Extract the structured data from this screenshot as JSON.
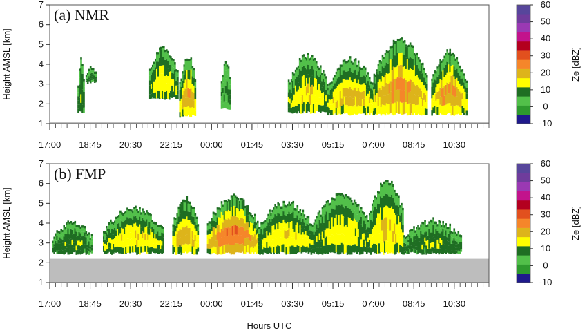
{
  "chart_data": {
    "type": "heatmap",
    "xlabel": "Hours UTC",
    "x_ticks": [
      "17:00",
      "18:45",
      "20:30",
      "22:15",
      "00:00",
      "01:45",
      "03:30",
      "05:15",
      "07:00",
      "08:45",
      "10:30"
    ],
    "x_range_hours_since_1700": [
      0,
      19
    ],
    "x_minor_tick_step_hours": 0.25,
    "colorbar": {
      "label": "Ze [dBZ]",
      "ticks": [
        60,
        50,
        40,
        30,
        20,
        10,
        0,
        -10
      ],
      "range": [
        -10,
        60
      ],
      "colors": [
        "#1f1a8c",
        "#2e9a2e",
        "#52c04a",
        "#1f6e23",
        "#ffff00",
        "#ddb41b",
        "#f5862a",
        "#e2501e",
        "#b3001f",
        "#c2138c",
        "#9a39b3",
        "#6f3c9c",
        "#57469b"
      ]
    },
    "panels": [
      {
        "label": "(a) NMR",
        "ylabel": "Height AMSL [km]",
        "y_ticks": [
          1,
          2,
          3,
          4,
          5,
          6,
          7
        ],
        "ylim": [
          1,
          7
        ],
        "ground_fill_top_km": 1.1,
        "echo_columns": [
          {
            "hours": [
              1.2,
              1.45
            ],
            "base_km": 1.5,
            "top_km": 4.3,
            "max_dbz": 12
          },
          {
            "hours": [
              1.55,
              2.0
            ],
            "base_km": 3.0,
            "top_km": 3.9,
            "max_dbz": 10
          },
          {
            "hours": [
              4.3,
              5.5
            ],
            "base_km": 2.2,
            "top_km": 4.9,
            "max_dbz": 17
          },
          {
            "hours": [
              5.6,
              6.3
            ],
            "base_km": 1.3,
            "top_km": 4.5,
            "max_dbz": 24
          },
          {
            "hours": [
              7.4,
              7.8
            ],
            "base_km": 1.7,
            "top_km": 4.2,
            "max_dbz": 8
          },
          {
            "hours": [
              10.3,
              12.0
            ],
            "base_km": 1.5,
            "top_km": 4.5,
            "max_dbz": 18
          },
          {
            "hours": [
              12.0,
              14.0
            ],
            "base_km": 1.4,
            "top_km": 4.3,
            "max_dbz": 22
          },
          {
            "hours": [
              14.0,
              16.3
            ],
            "base_km": 1.4,
            "top_km": 5.3,
            "max_dbz": 26
          },
          {
            "hours": [
              16.5,
              18.0
            ],
            "base_km": 1.4,
            "top_km": 4.7,
            "max_dbz": 25
          }
        ]
      },
      {
        "label": "(b) FMP",
        "ylabel": "Height AMSL [km]",
        "y_ticks": [
          1,
          2,
          3,
          4,
          5,
          6,
          7
        ],
        "ylim": [
          1,
          7
        ],
        "ground_fill_top_km": 2.2,
        "echo_columns": [
          {
            "hours": [
              0.1,
              1.8
            ],
            "base_km": 2.4,
            "top_km": 4.1,
            "max_dbz": 12
          },
          {
            "hours": [
              2.3,
              4.9
            ],
            "base_km": 2.4,
            "top_km": 4.8,
            "max_dbz": 18
          },
          {
            "hours": [
              5.3,
              6.4
            ],
            "base_km": 2.4,
            "top_km": 5.3,
            "max_dbz": 22
          },
          {
            "hours": [
              6.8,
              9.0
            ],
            "base_km": 2.4,
            "top_km": 5.4,
            "max_dbz": 30
          },
          {
            "hours": [
              9.0,
              11.4
            ],
            "base_km": 2.4,
            "top_km": 5.1,
            "max_dbz": 18
          },
          {
            "hours": [
              11.4,
              13.8
            ],
            "base_km": 2.4,
            "top_km": 5.5,
            "max_dbz": 16
          },
          {
            "hours": [
              13.8,
              15.3
            ],
            "base_km": 2.4,
            "top_km": 6.2,
            "max_dbz": 20
          },
          {
            "hours": [
              15.3,
              17.8
            ],
            "base_km": 2.4,
            "top_km": 4.2,
            "max_dbz": 12
          }
        ]
      }
    ]
  }
}
